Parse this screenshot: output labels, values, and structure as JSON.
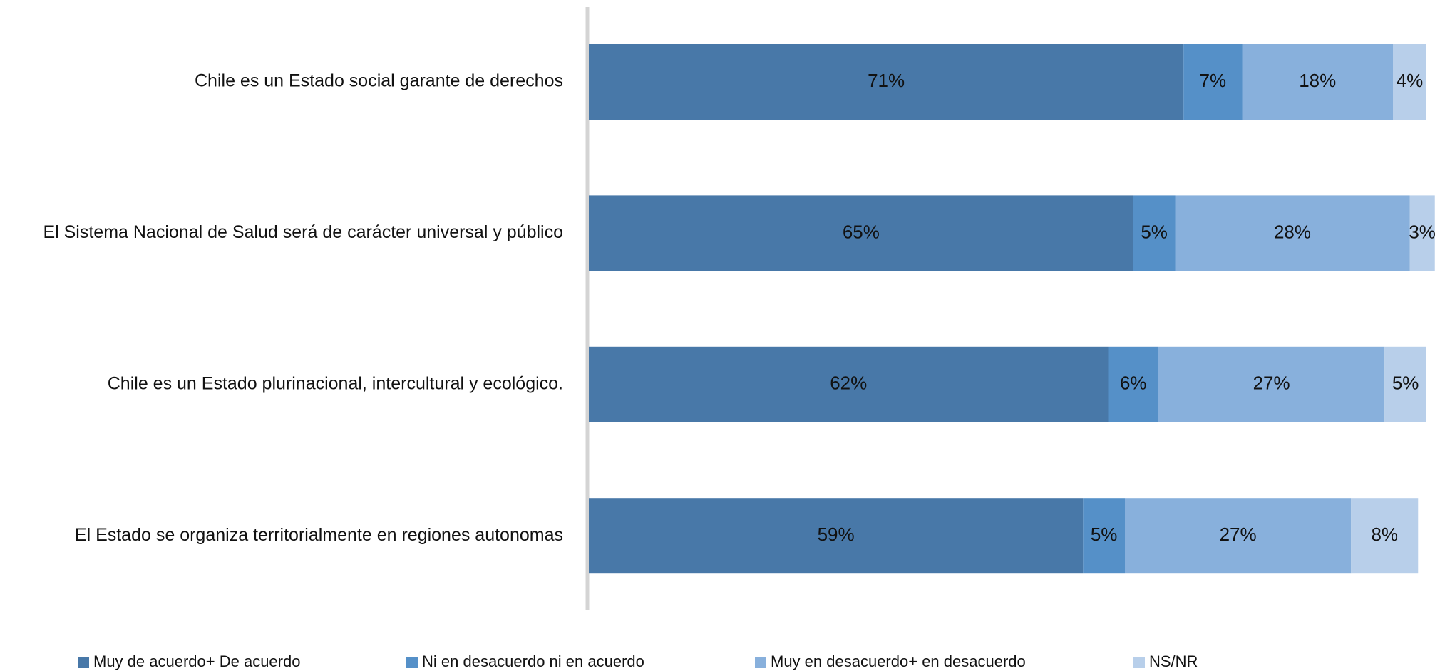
{
  "chart_data": {
    "type": "stacked_barh",
    "categories": [
      "Chile es un Estado social garante de derechos",
      "El Sistema Nacional de Salud será de carácter universal y público",
      "Chile es un Estado plurinacional, intercultural y ecológico.",
      "El Estado se organiza territorialmente en regiones autonomas"
    ],
    "series": [
      {
        "name": "Muy de acuerdo+ De acuerdo",
        "color": "#4878a8",
        "values": [
          71,
          65,
          62,
          59
        ],
        "value_labels": [
          "71%",
          "65%",
          "62%",
          "59%"
        ]
      },
      {
        "name": "Ni en desacuerdo ni en acuerdo",
        "color": "#5590c8",
        "values": [
          7,
          5,
          6,
          5
        ],
        "value_labels": [
          "7%",
          "5%",
          "6%",
          "5%"
        ]
      },
      {
        "name": "Muy en desacuerdo+ en desacuerdo",
        "color": "#88b0dc",
        "values": [
          18,
          28,
          27,
          27
        ],
        "value_labels": [
          "18%",
          "28%",
          "27%",
          "27%"
        ]
      },
      {
        "name": "NS/NR",
        "color": "#b8cfea",
        "values": [
          4,
          3,
          5,
          8
        ],
        "value_labels": [
          "4%",
          "3%",
          "5%",
          "8%"
        ]
      }
    ],
    "xlim": [
      0,
      100
    ]
  }
}
